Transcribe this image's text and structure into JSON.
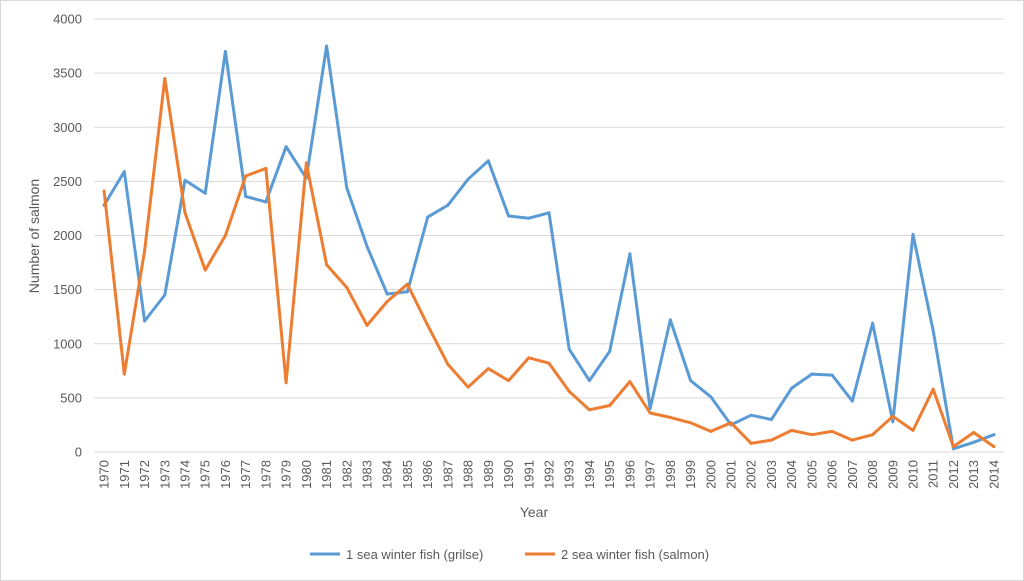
{
  "chart_data": {
    "type": "line",
    "title": "",
    "xlabel": "Year",
    "ylabel": "Number of salmon",
    "ylim": [
      0,
      4000
    ],
    "yticks": [
      0,
      500,
      1000,
      1500,
      2000,
      2500,
      3000,
      3500,
      4000
    ],
    "grid": true,
    "legend_position": "bottom",
    "categories": [
      "1970",
      "1971",
      "1972",
      "1973",
      "1974",
      "1975",
      "1976",
      "1977",
      "1978",
      "1979",
      "1980",
      "1981",
      "1982",
      "1983",
      "1984",
      "1985",
      "1986",
      "1987",
      "1988",
      "1989",
      "1990",
      "1991",
      "1992",
      "1993",
      "1994",
      "1995",
      "1996",
      "1997",
      "1998",
      "1999",
      "2000",
      "2001",
      "2002",
      "2003",
      "2004",
      "2005",
      "2006",
      "2007",
      "2008",
      "2009",
      "2010",
      "2011",
      "2012",
      "2013",
      "2014"
    ],
    "series": [
      {
        "name": "1 sea winter fish (grilse)",
        "color": "#5b9bd5",
        "values": [
          2280,
          2590,
          1210,
          1450,
          2510,
          2390,
          3700,
          2360,
          2310,
          2820,
          2530,
          3750,
          2440,
          1900,
          1460,
          1480,
          2170,
          2280,
          2520,
          2690,
          2180,
          2160,
          2210,
          950,
          660,
          930,
          1830,
          400,
          1220,
          660,
          510,
          250,
          340,
          300,
          590,
          720,
          710,
          470,
          1190,
          280,
          2010,
          1120,
          30,
          90,
          160
        ]
      },
      {
        "name": "2 sea winter fish (salmon)",
        "color": "#ed7d31",
        "values": [
          2410,
          720,
          1860,
          3450,
          2210,
          1680,
          2000,
          2550,
          2620,
          640,
          2670,
          1730,
          1520,
          1170,
          1390,
          1550,
          1170,
          810,
          600,
          770,
          660,
          870,
          820,
          560,
          390,
          430,
          650,
          360,
          320,
          270,
          190,
          270,
          80,
          110,
          200,
          160,
          190,
          110,
          160,
          330,
          200,
          580,
          50,
          180,
          50
        ]
      }
    ]
  }
}
